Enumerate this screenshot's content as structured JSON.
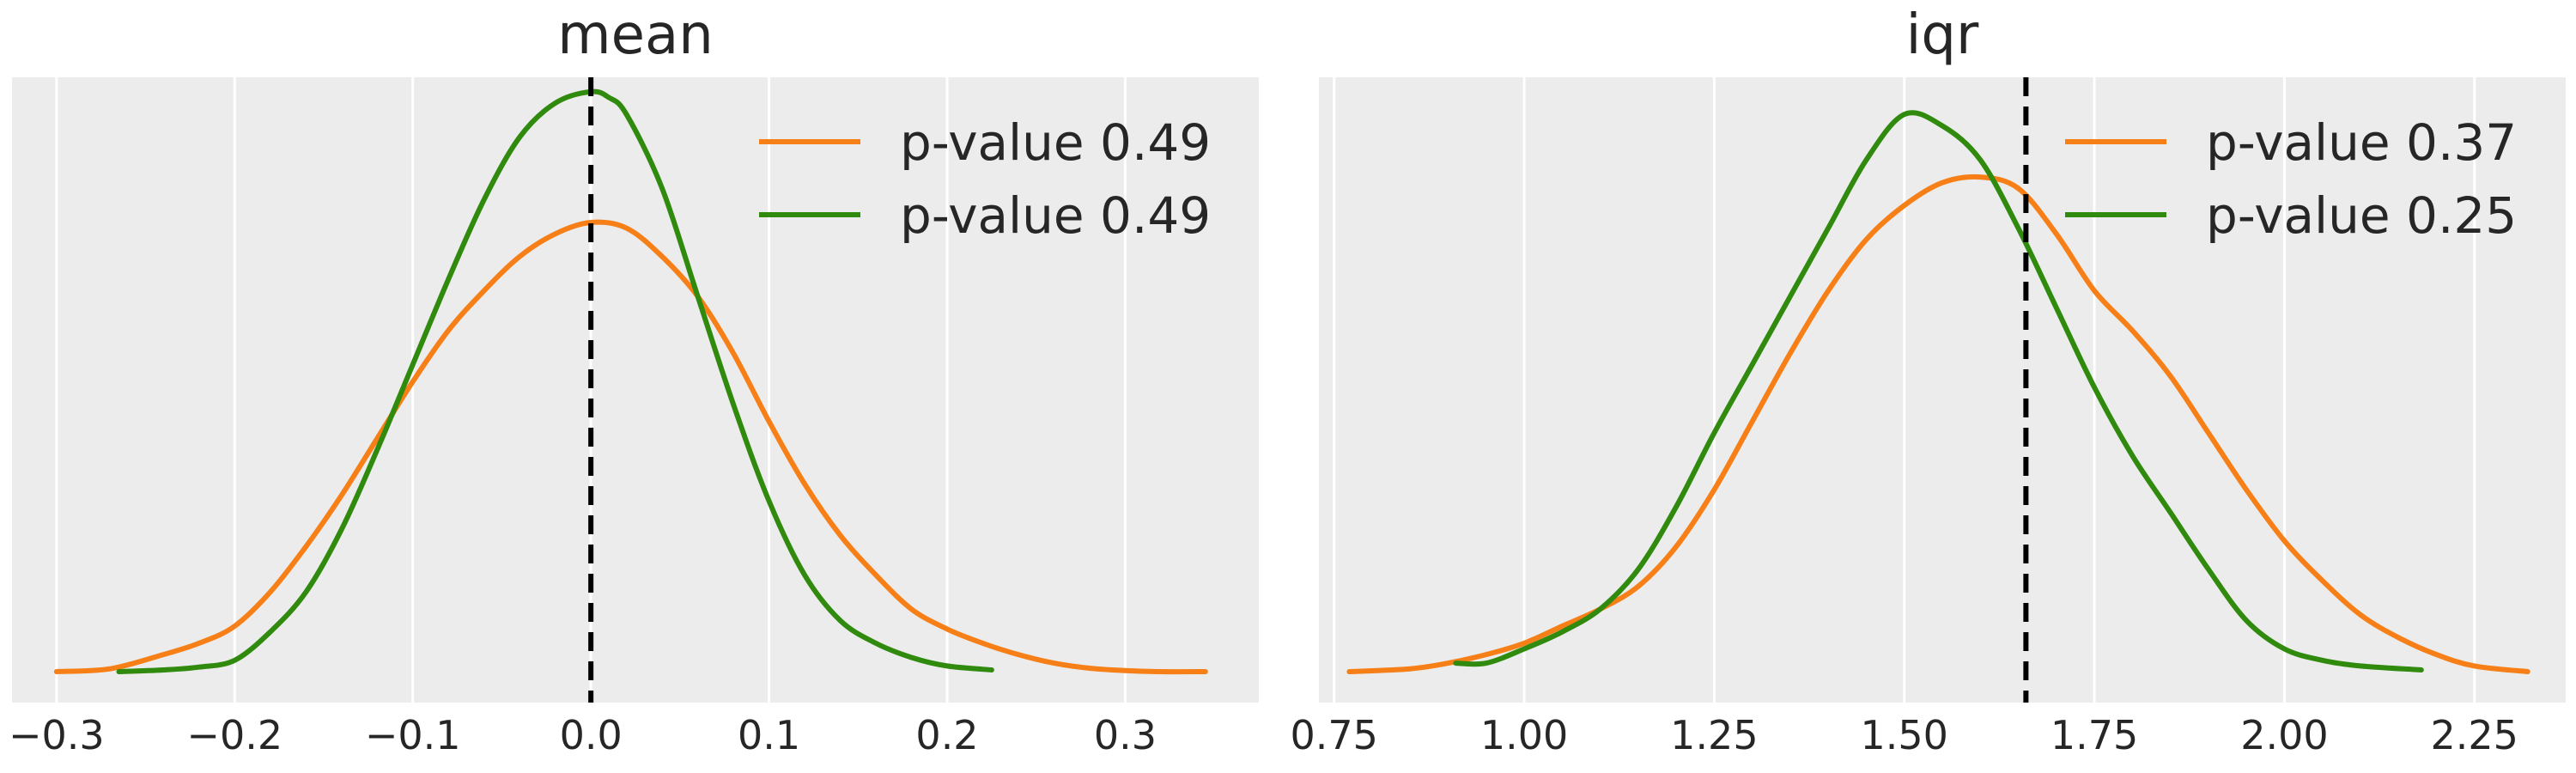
{
  "chart_data": [
    {
      "type": "line",
      "title": "mean",
      "xlabel": "",
      "ylabel": "",
      "xlim": [
        -0.325,
        0.375
      ],
      "ylim": [
        0,
        1.0
      ],
      "xticks": [
        -0.3,
        -0.2,
        -0.1,
        0.0,
        0.1,
        0.2,
        0.3
      ],
      "xtick_labels": [
        "−0.3",
        "−0.2",
        "−0.1",
        "0.0",
        "0.1",
        "0.2",
        "0.3"
      ],
      "grid": true,
      "legend_position": "top-right",
      "reference_line": {
        "x": 0.0,
        "style": "dashed",
        "color": "#000000"
      },
      "series": [
        {
          "name": "p-value 0.49",
          "color": "#f77f17",
          "x": [
            -0.3,
            -0.27,
            -0.24,
            -0.22,
            -0.2,
            -0.18,
            -0.16,
            -0.14,
            -0.12,
            -0.1,
            -0.08,
            -0.06,
            -0.04,
            -0.02,
            0.0,
            0.02,
            0.04,
            0.06,
            0.08,
            0.1,
            0.12,
            0.14,
            0.16,
            0.18,
            0.2,
            0.22,
            0.24,
            0.26,
            0.28,
            0.3,
            0.32,
            0.345
          ],
          "y": [
            0.0,
            0.005,
            0.03,
            0.05,
            0.08,
            0.14,
            0.22,
            0.31,
            0.41,
            0.51,
            0.6,
            0.67,
            0.73,
            0.77,
            0.79,
            0.78,
            0.73,
            0.66,
            0.56,
            0.44,
            0.33,
            0.24,
            0.17,
            0.11,
            0.075,
            0.05,
            0.03,
            0.015,
            0.006,
            0.002,
            0.0,
            0.0
          ]
        },
        {
          "name": "p-value 0.49",
          "color": "#2f8a0d",
          "x": [
            -0.265,
            -0.24,
            -0.22,
            -0.2,
            -0.18,
            -0.16,
            -0.14,
            -0.12,
            -0.1,
            -0.08,
            -0.06,
            -0.04,
            -0.02,
            0.0,
            0.01,
            0.02,
            0.04,
            0.06,
            0.08,
            0.1,
            0.12,
            0.14,
            0.16,
            0.18,
            0.2,
            0.225
          ],
          "y": [
            0.0,
            0.003,
            0.008,
            0.02,
            0.07,
            0.14,
            0.25,
            0.39,
            0.54,
            0.69,
            0.83,
            0.94,
            1.0,
            1.02,
            1.01,
            0.98,
            0.85,
            0.66,
            0.47,
            0.3,
            0.17,
            0.09,
            0.05,
            0.025,
            0.01,
            0.003
          ]
        }
      ]
    },
    {
      "type": "line",
      "title": "iqr",
      "xlabel": "",
      "ylabel": "",
      "xlim": [
        0.73,
        2.37
      ],
      "ylim": [
        0,
        1.0
      ],
      "xticks": [
        0.75,
        1.0,
        1.25,
        1.5,
        1.75,
        2.0,
        2.25
      ],
      "xtick_labels": [
        "0.75",
        "1.00",
        "1.25",
        "1.50",
        "1.75",
        "2.00",
        "2.25"
      ],
      "grid": true,
      "legend_position": "top-right",
      "reference_line": {
        "x": 1.66,
        "style": "dashed",
        "color": "#000000"
      },
      "series": [
        {
          "name": "p-value 0.37",
          "color": "#f77f17",
          "x": [
            0.77,
            0.85,
            0.9,
            0.95,
            1.0,
            1.05,
            1.1,
            1.15,
            1.2,
            1.25,
            1.3,
            1.35,
            1.4,
            1.45,
            1.5,
            1.55,
            1.6,
            1.65,
            1.7,
            1.75,
            1.8,
            1.85,
            1.9,
            1.95,
            2.0,
            2.05,
            2.1,
            2.15,
            2.2,
            2.25,
            2.32
          ],
          "y": [
            0.0,
            0.005,
            0.015,
            0.03,
            0.05,
            0.08,
            0.11,
            0.15,
            0.22,
            0.32,
            0.44,
            0.56,
            0.67,
            0.76,
            0.82,
            0.86,
            0.87,
            0.85,
            0.77,
            0.67,
            0.6,
            0.52,
            0.42,
            0.32,
            0.23,
            0.16,
            0.1,
            0.06,
            0.03,
            0.01,
            0.0
          ]
        },
        {
          "name": "p-value 0.25",
          "color": "#2f8a0d",
          "x": [
            0.91,
            0.95,
            1.0,
            1.05,
            1.1,
            1.15,
            1.2,
            1.25,
            1.3,
            1.35,
            1.4,
            1.45,
            1.5,
            1.55,
            1.6,
            1.65,
            1.7,
            1.75,
            1.8,
            1.85,
            1.9,
            1.95,
            2.0,
            2.05,
            2.1,
            2.18
          ],
          "y": [
            0.015,
            0.015,
            0.04,
            0.07,
            0.11,
            0.18,
            0.29,
            0.42,
            0.54,
            0.66,
            0.78,
            0.9,
            0.98,
            0.96,
            0.9,
            0.78,
            0.64,
            0.5,
            0.38,
            0.28,
            0.18,
            0.09,
            0.04,
            0.02,
            0.01,
            0.003
          ]
        }
      ]
    }
  ]
}
